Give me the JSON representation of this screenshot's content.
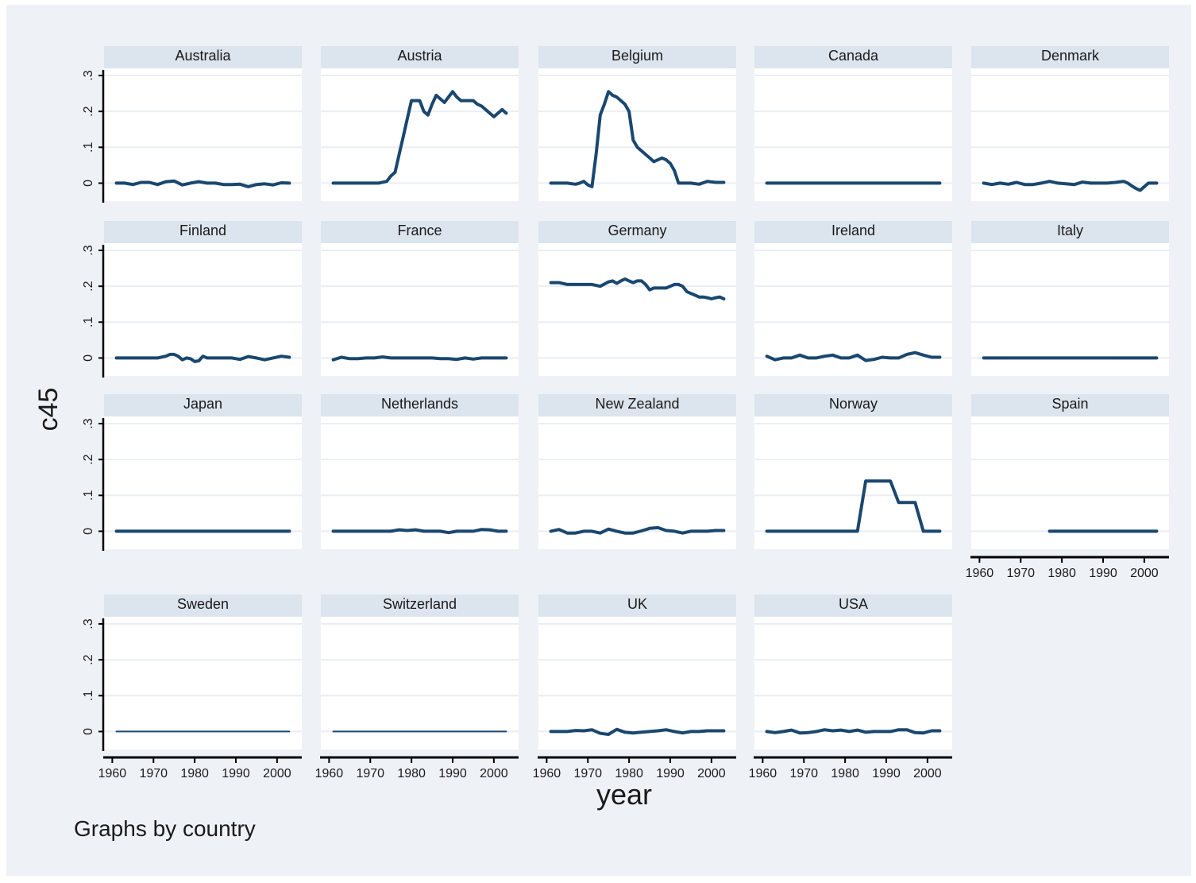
{
  "chart_data": {
    "type": "line",
    "layout": "small-multiples",
    "ylabel": "c45",
    "xlabel": "year",
    "note": "Graphs by country",
    "xlim": [
      1958,
      2006
    ],
    "ylim": [
      -0.05,
      0.32
    ],
    "xticks": [
      1960,
      1970,
      1980,
      1990,
      2000
    ],
    "xtick_labels": [
      "1960",
      "1970",
      "1980",
      "1990",
      "2000"
    ],
    "yticks": [
      0,
      0.1,
      0.2,
      0.3
    ],
    "ytick_labels": [
      "0",
      ".1",
      ".2",
      ".3"
    ],
    "grid": true,
    "line_color": "#1a476f",
    "panel_header_color": "#dce4ee",
    "background_color": "#eef2f7",
    "panels": [
      {
        "country": "Australia",
        "x": [
          1961,
          1963,
          1965,
          1967,
          1969,
          1971,
          1973,
          1975,
          1977,
          1979,
          1981,
          1983,
          1985,
          1987,
          1989,
          1991,
          1993,
          1995,
          1997,
          1999,
          2001,
          2003
        ],
        "y": [
          0,
          0,
          -0.004,
          0.002,
          0.002,
          -0.004,
          0.004,
          0.006,
          -0.005,
          0,
          0.004,
          0,
          0,
          -0.004,
          -0.004,
          -0.003,
          -0.01,
          -0.004,
          -0.002,
          -0.005,
          0.001,
          0
        ]
      },
      {
        "country": "Austria",
        "x": [
          1961,
          1965,
          1970,
          1972,
          1974,
          1975,
          1976,
          1977,
          1978,
          1979,
          1980,
          1981,
          1982,
          1983,
          1984,
          1985,
          1986,
          1987,
          1988,
          1989,
          1990,
          1991,
          1992,
          1993,
          1994,
          1995,
          1996,
          1997,
          1998,
          1999,
          2000,
          2001,
          2002,
          2003
        ],
        "y": [
          0,
          0,
          0,
          0,
          0.005,
          0.02,
          0.03,
          0.08,
          0.13,
          0.18,
          0.23,
          0.23,
          0.23,
          0.2,
          0.19,
          0.22,
          0.245,
          0.235,
          0.225,
          0.24,
          0.255,
          0.24,
          0.23,
          0.23,
          0.23,
          0.23,
          0.22,
          0.215,
          0.205,
          0.195,
          0.185,
          0.195,
          0.205,
          0.195
        ]
      },
      {
        "country": "Belgium",
        "x": [
          1961,
          1963,
          1965,
          1967,
          1968,
          1969,
          1970,
          1971,
          1972,
          1973,
          1974,
          1975,
          1976,
          1977,
          1978,
          1979,
          1980,
          1981,
          1982,
          1983,
          1984,
          1985,
          1986,
          1987,
          1988,
          1989,
          1990,
          1991,
          1992,
          1993,
          1995,
          1997,
          1999,
          2001,
          2003
        ],
        "y": [
          0,
          0,
          0,
          -0.003,
          0,
          0.005,
          -0.005,
          -0.01,
          0.08,
          0.19,
          0.22,
          0.255,
          0.245,
          0.24,
          0.23,
          0.22,
          0.2,
          0.12,
          0.1,
          0.09,
          0.08,
          0.07,
          0.06,
          0.065,
          0.07,
          0.065,
          0.055,
          0.035,
          0,
          0,
          0,
          -0.003,
          0.005,
          0.002,
          0.002
        ]
      },
      {
        "country": "Canada",
        "x": [
          1961,
          2003
        ],
        "y": [
          0,
          0
        ]
      },
      {
        "country": "Denmark",
        "x": [
          1961,
          1963,
          1965,
          1967,
          1969,
          1971,
          1973,
          1975,
          1977,
          1979,
          1981,
          1983,
          1985,
          1987,
          1989,
          1991,
          1993,
          1995,
          1996,
          1997,
          1998,
          1999,
          2000,
          2001,
          2003
        ],
        "y": [
          0,
          -0.004,
          0,
          -0.003,
          0.002,
          -0.004,
          -0.004,
          0,
          0.005,
          0,
          -0.002,
          -0.004,
          0.003,
          0,
          0,
          0,
          0.002,
          0.005,
          0,
          -0.008,
          -0.015,
          -0.02,
          -0.01,
          0,
          0
        ]
      },
      {
        "country": "Finland",
        "x": [
          1961,
          1963,
          1965,
          1967,
          1969,
          1971,
          1973,
          1974,
          1975,
          1976,
          1977,
          1978,
          1979,
          1980,
          1981,
          1982,
          1983,
          1985,
          1987,
          1989,
          1991,
          1993,
          1995,
          1997,
          1999,
          2001,
          2003
        ],
        "y": [
          0,
          0,
          0,
          0,
          0,
          0,
          0.005,
          0.01,
          0.01,
          0.005,
          -0.005,
          0,
          -0.002,
          -0.01,
          -0.008,
          0.005,
          0,
          0,
          0,
          0,
          -0.004,
          0.004,
          0,
          -0.005,
          0,
          0.005,
          0.002
        ]
      },
      {
        "country": "France",
        "x": [
          1961,
          1963,
          1965,
          1967,
          1969,
          1971,
          1973,
          1975,
          1977,
          1979,
          1981,
          1983,
          1985,
          1987,
          1989,
          1991,
          1993,
          1995,
          1997,
          1999,
          2001,
          2003
        ],
        "y": [
          -0.005,
          0.002,
          -0.002,
          -0.002,
          0,
          0,
          0.003,
          0,
          0,
          0,
          0,
          0,
          0,
          -0.002,
          -0.002,
          -0.004,
          0,
          -0.003,
          0,
          0,
          0,
          0
        ]
      },
      {
        "country": "Germany",
        "x": [
          1961,
          1963,
          1965,
          1967,
          1969,
          1971,
          1973,
          1975,
          1976,
          1977,
          1978,
          1979,
          1980,
          1981,
          1982,
          1983,
          1984,
          1985,
          1986,
          1987,
          1988,
          1989,
          1990,
          1991,
          1992,
          1993,
          1994,
          1995,
          1996,
          1997,
          1998,
          1999,
          2000,
          2001,
          2002,
          2003
        ],
        "y": [
          0.21,
          0.21,
          0.205,
          0.205,
          0.205,
          0.205,
          0.2,
          0.212,
          0.215,
          0.208,
          0.215,
          0.22,
          0.215,
          0.21,
          0.215,
          0.215,
          0.205,
          0.19,
          0.195,
          0.195,
          0.195,
          0.195,
          0.2,
          0.205,
          0.205,
          0.2,
          0.185,
          0.18,
          0.175,
          0.17,
          0.17,
          0.168,
          0.165,
          0.168,
          0.17,
          0.165
        ]
      },
      {
        "country": "Ireland",
        "x": [
          1961,
          1963,
          1965,
          1967,
          1969,
          1971,
          1973,
          1975,
          1977,
          1979,
          1981,
          1983,
          1985,
          1987,
          1989,
          1991,
          1993,
          1995,
          1997,
          1999,
          2001,
          2003
        ],
        "y": [
          0.005,
          -0.005,
          0,
          0,
          0.008,
          0,
          0,
          0.005,
          0.008,
          0,
          0,
          0.008,
          -0.007,
          -0.004,
          0.002,
          0,
          0,
          0.01,
          0.015,
          0.008,
          0.002,
          0.002
        ]
      },
      {
        "country": "Italy",
        "x": [
          1961,
          2003
        ],
        "y": [
          0,
          0
        ]
      },
      {
        "country": "Japan",
        "x": [
          1961,
          2003
        ],
        "y": [
          0,
          0
        ]
      },
      {
        "country": "Netherlands",
        "x": [
          1961,
          1963,
          1965,
          1967,
          1969,
          1971,
          1973,
          1975,
          1977,
          1979,
          1981,
          1983,
          1985,
          1987,
          1989,
          1991,
          1993,
          1995,
          1997,
          1999,
          2001,
          2003
        ],
        "y": [
          0,
          0,
          0,
          0,
          0,
          0,
          0,
          0,
          0.004,
          0.002,
          0.004,
          0,
          0,
          0,
          -0.004,
          0,
          0,
          0,
          0.005,
          0.004,
          0,
          0
        ]
      },
      {
        "country": "New Zealand",
        "x": [
          1961,
          1963,
          1965,
          1967,
          1969,
          1971,
          1973,
          1975,
          1977,
          1979,
          1981,
          1983,
          1985,
          1987,
          1989,
          1991,
          1993,
          1995,
          1997,
          1999,
          2001,
          2003
        ],
        "y": [
          0,
          0.005,
          -0.005,
          -0.005,
          0,
          0,
          -0.005,
          0.006,
          0,
          -0.005,
          -0.005,
          0.001,
          0.008,
          0.01,
          0.002,
          0,
          -0.005,
          0,
          0,
          0,
          0.002,
          0.002
        ]
      },
      {
        "country": "Norway",
        "x": [
          1961,
          1970,
          1980,
          1983,
          1984,
          1985,
          1986,
          1987,
          1988,
          1989,
          1990,
          1991,
          1992,
          1993,
          1994,
          1995,
          1996,
          1997,
          1998,
          1999,
          2000,
          2001,
          2003
        ],
        "y": [
          0,
          0,
          0,
          0,
          0.07,
          0.14,
          0.14,
          0.14,
          0.14,
          0.14,
          0.14,
          0.14,
          0.11,
          0.08,
          0.08,
          0.08,
          0.08,
          0.08,
          0.04,
          0,
          0,
          0,
          0
        ]
      },
      {
        "country": "Spain",
        "x": [
          1977,
          2003
        ],
        "y": [
          0,
          0
        ]
      },
      {
        "country": "Sweden",
        "x": [
          1961,
          2003
        ],
        "y": [
          0,
          0
        ]
      },
      {
        "country": "Switzerland",
        "x": [
          1961,
          2003
        ],
        "y": [
          0,
          0
        ]
      },
      {
        "country": "UK",
        "x": [
          1961,
          1963,
          1965,
          1967,
          1969,
          1971,
          1973,
          1975,
          1977,
          1979,
          1981,
          1983,
          1985,
          1987,
          1989,
          1991,
          1993,
          1995,
          1997,
          1999,
          2001,
          2003
        ],
        "y": [
          0,
          0,
          0,
          0.003,
          0.002,
          0.005,
          -0.005,
          -0.008,
          0.006,
          -0.002,
          -0.004,
          -0.002,
          0,
          0.002,
          0.005,
          0,
          -0.004,
          0,
          0,
          0.002,
          0.002,
          0.002
        ]
      },
      {
        "country": "USA",
        "x": [
          1961,
          1963,
          1965,
          1967,
          1969,
          1971,
          1973,
          1975,
          1977,
          1979,
          1981,
          1983,
          1985,
          1987,
          1989,
          1991,
          1993,
          1995,
          1997,
          1999,
          2001,
          2003
        ],
        "y": [
          0,
          -0.003,
          0,
          0.004,
          -0.004,
          -0.003,
          0,
          0.005,
          0.002,
          0.004,
          0,
          0.004,
          -0.002,
          0,
          0,
          0,
          0.005,
          0.005,
          -0.003,
          -0.004,
          0.002,
          0.002
        ]
      }
    ]
  }
}
